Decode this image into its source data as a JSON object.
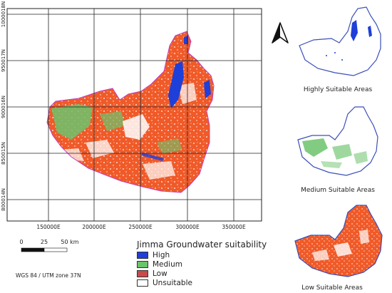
{
  "map": {
    "x_ticks": [
      "150000E",
      "200000E",
      "250000E",
      "300000E",
      "350000E"
    ],
    "y_ticks": [
      "1000018N",
      "950017N",
      "900016N",
      "850015N",
      "800014N"
    ]
  },
  "scalebar": {
    "labels": [
      "0",
      "25",
      "50 km"
    ]
  },
  "legend": {
    "title": "Jimma Groundwater suitability",
    "items": [
      {
        "label": "High",
        "color": "#1f3fd9"
      },
      {
        "label": "Medium",
        "color": "#6cc36c"
      },
      {
        "label": "Low",
        "color": "#c84b4b"
      },
      {
        "label": "Unsuitable",
        "color": "#ffffff"
      }
    ]
  },
  "crs": "WGS 84 / UTM zone 37N",
  "insets": [
    {
      "caption": "Highly Suitable Areas",
      "color": "#1f3fd9"
    },
    {
      "caption": "Medium Suitable Areas",
      "color": "#6cc36c"
    },
    {
      "caption": "Low Suitable Areas",
      "color": "#f05a28"
    }
  ],
  "colors": {
    "low_map": "#f05a28",
    "outline": "#3a4fb8",
    "grid": "#222222"
  },
  "north_arrow": "north-arrow-icon"
}
